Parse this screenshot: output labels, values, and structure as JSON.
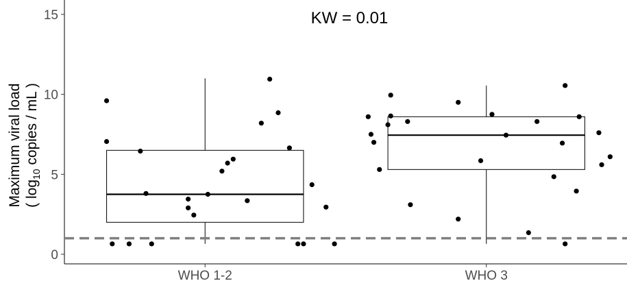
{
  "chart_data": {
    "type": "box",
    "annotation": "KW = 0.01",
    "ylabel_line1": "Maximum viral load",
    "ylabel_line2_pre": "( log",
    "ylabel_line2_sub": "10",
    "ylabel_line2_post": " copies / mL )",
    "xlabel": "",
    "ylim": [
      -0.6,
      15.9
    ],
    "yticks": [
      0,
      5,
      10,
      15
    ],
    "categories": [
      "WHO 1-2",
      "WHO 3"
    ],
    "boxes": [
      {
        "q1": 2.0,
        "median": 3.75,
        "q3": 6.5,
        "whisker_low": 0.65,
        "whisker_high": 11.0
      },
      {
        "q1": 5.3,
        "median": 7.45,
        "q3": 8.6,
        "whisker_low": 0.65,
        "whisker_high": 10.55
      }
    ],
    "points": [
      [
        9.6,
        7.05,
        0.65,
        0.65,
        6.45,
        3.8,
        0.65,
        3.45,
        2.9,
        2.45,
        3.75,
        5.2,
        5.7,
        5.95,
        3.35,
        8.2,
        10.95,
        8.85,
        6.65,
        0.65,
        0.65,
        4.35,
        2.95,
        0.65
      ],
      [
        8.6,
        7.5,
        7.0,
        5.3,
        9.95,
        8.65,
        8.1,
        8.3,
        3.1,
        2.2,
        9.5,
        5.85,
        8.75,
        7.45,
        1.35,
        8.3,
        4.85,
        6.95,
        10.55,
        0.65,
        3.95,
        8.6,
        7.6,
        5.6,
        6.1
      ]
    ],
    "jitter": [
      [
        -0.35,
        -0.35,
        -0.33,
        -0.27,
        -0.23,
        -0.21,
        -0.19,
        -0.06,
        -0.06,
        -0.04,
        0.01,
        0.06,
        0.08,
        0.1,
        0.15,
        0.2,
        0.23,
        0.26,
        0.3,
        0.33,
        0.35,
        0.38,
        0.43,
        0.46
      ],
      [
        -0.42,
        -0.41,
        -0.4,
        -0.38,
        -0.34,
        -0.34,
        -0.35,
        -0.28,
        -0.27,
        -0.1,
        -0.1,
        -0.02,
        0.02,
        0.07,
        0.15,
        0.18,
        0.24,
        0.27,
        0.28,
        0.28,
        0.32,
        0.33,
        0.4,
        0.41,
        0.44
      ]
    ],
    "reference_line": 1,
    "grid": false,
    "colors": {
      "points": "#000000",
      "box": "#000000",
      "reference_line": "#808080"
    }
  }
}
